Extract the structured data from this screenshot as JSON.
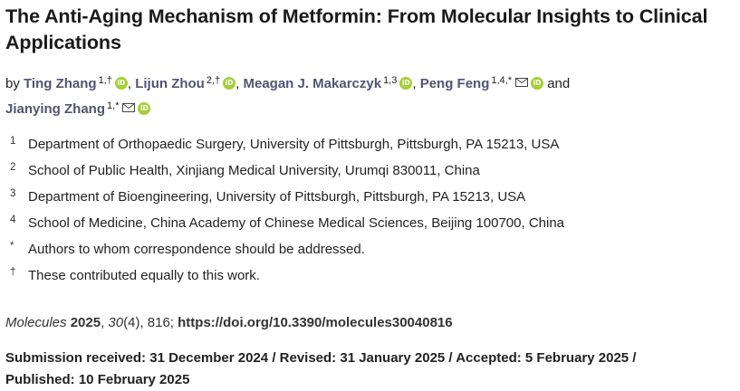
{
  "article": {
    "title": "The Anti-Aging Mechanism of Metformin: From Molecular Insights to Clinical Applications"
  },
  "authors": {
    "by_label": "by",
    "and_label": "and",
    "list": [
      {
        "name": "Ting Zhang",
        "affil": "1,†",
        "orcid_icon": "iD"
      },
      {
        "name": "Lijun Zhou",
        "affil": "2,†",
        "orcid_icon": "iD"
      },
      {
        "name": "Meagan J. Makarczyk",
        "affil": "1,3",
        "orcid_icon": "iD"
      },
      {
        "name": "Peng Feng",
        "affil": "1,4,*",
        "orcid_icon": "iD"
      },
      {
        "name": "Jianying Zhang",
        "affil": "1,*",
        "orcid_icon": "iD"
      }
    ]
  },
  "affiliations": [
    {
      "mark": "1",
      "text": "Department of Orthopaedic Surgery, University of Pittsburgh, Pittsburgh, PA 15213, USA"
    },
    {
      "mark": "2",
      "text": "School of Public Health, Xinjiang Medical University, Urumqi 830011, China"
    },
    {
      "mark": "3",
      "text": "Department of Bioengineering, University of Pittsburgh, Pittsburgh, PA 15213, USA"
    },
    {
      "mark": "4",
      "text": "School of Medicine, China Academy of Chinese Medical Sciences, Beijing 100700, China"
    },
    {
      "mark": "*",
      "text": "Authors to whom correspondence should be addressed."
    },
    {
      "mark": "†",
      "text": "These contributed equally to this work."
    }
  ],
  "citation": {
    "journal": "Molecules",
    "year": "2025",
    "volume": "30",
    "issue": "(4), 816; ",
    "doi": "https://doi.org/10.3390/molecules30040816"
  },
  "dates": {
    "line1": "Submission received: 31 December 2024 / Revised: 31 January 2025 / Accepted: 5 February 2025 /",
    "line2": "Published: 10 February 2025"
  },
  "colors": {
    "author_link": "#4f5671",
    "orcid": "#a6ce39"
  }
}
